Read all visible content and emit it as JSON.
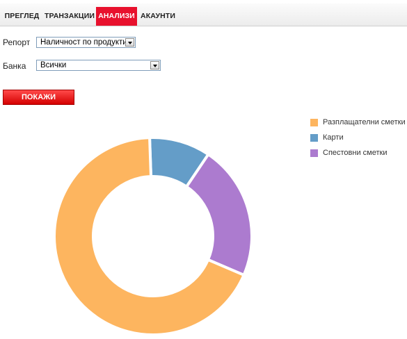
{
  "nav": {
    "tabs": [
      {
        "label": "ПРЕГЛЕД"
      },
      {
        "label": "ТРАНЗАКЦИИ"
      },
      {
        "label": "АНАЛИЗИ"
      },
      {
        "label": "АКАУНТИ"
      }
    ]
  },
  "form": {
    "report_label": "Репорт",
    "report_value": "Наличност по продукти",
    "bank_label": "Банка",
    "bank_value": "Всички",
    "submit_label": "ПОКАЖИ"
  },
  "chart_data": {
    "type": "pie",
    "variant": "donut",
    "series": [
      {
        "name": "Разплащателни сметки",
        "value": 68,
        "color": "#fdb55f"
      },
      {
        "name": "Карти",
        "value": 10,
        "color": "#649dc8"
      },
      {
        "name": "Спестовни сметки",
        "value": 22,
        "color": "#ac7bcf"
      }
    ],
    "legend_position": "top-right"
  }
}
